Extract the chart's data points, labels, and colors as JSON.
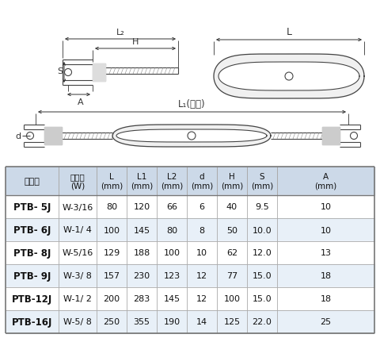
{
  "bg_color": "#ffffff",
  "table_header": [
    "品　番",
    "ネジ径\n(W)",
    "L\n(mm)",
    "L1\n(mm)",
    "L2\n(mm)",
    "d\n(mm)",
    "H\n(mm)",
    "S\n(mm)",
    "A\n(mm)"
  ],
  "table_rows": [
    [
      "PTB- 5J",
      "W-3/16",
      "80",
      "120",
      "66",
      "6",
      "40",
      "9.5",
      "10"
    ],
    [
      "PTB- 6J",
      "W-1/ 4",
      "100",
      "145",
      "80",
      "8",
      "50",
      "10.0",
      "10"
    ],
    [
      "PTB- 8J",
      "W-5/16",
      "129",
      "188",
      "100",
      "10",
      "62",
      "12.0",
      "13"
    ],
    [
      "PTB- 9J",
      "W-3/ 8",
      "157",
      "230",
      "123",
      "12",
      "77",
      "15.0",
      "18"
    ],
    [
      "PTB-12J",
      "W-1/ 2",
      "200",
      "283",
      "145",
      "12",
      "100",
      "15.0",
      "18"
    ],
    [
      "PTB-16J",
      "W-5/ 8",
      "250",
      "355",
      "190",
      "14",
      "125",
      "22.0",
      "25"
    ]
  ],
  "header_bg": "#ccd9e8",
  "row_bg_odd": "#ffffff",
  "row_bg_even": "#e8f0f8",
  "line_color": "#444444",
  "dim_color": "#333333",
  "fill_body": "#ffffff",
  "fill_jaw": "#cccccc"
}
